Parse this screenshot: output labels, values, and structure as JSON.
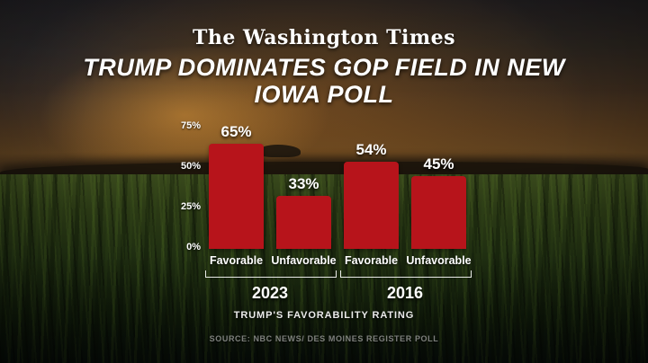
{
  "masthead": {
    "text": "The Washington Times"
  },
  "headline": {
    "line1": "TRUMP DOMINATES GOP FIELD IN NEW",
    "line2": "IOWA POLL"
  },
  "chart_data": {
    "type": "bar",
    "title": "TRUMP'S FAVORABILITY RATING",
    "groups": [
      {
        "label": "2023",
        "categories": [
          "Favorable",
          "Unfavorable"
        ],
        "values": [
          65,
          33
        ],
        "value_labels": [
          "65%",
          "33%"
        ]
      },
      {
        "label": "2016",
        "categories": [
          "Favorable",
          "Unfavorable"
        ],
        "values": [
          54,
          45
        ],
        "value_labels": [
          "54%",
          "45%"
        ]
      }
    ],
    "ylabel": "",
    "ylim": [
      0,
      75
    ],
    "yticks": [
      {
        "value": 75,
        "label": "75%"
      },
      {
        "value": 50,
        "label": "50%"
      },
      {
        "value": 25,
        "label": "25%"
      },
      {
        "value": 0,
        "label": "0%"
      }
    ],
    "grid": false,
    "bar_color": "#b7141b"
  },
  "source": {
    "text": "SOURCE: NBC NEWS/ DES MOINES REGISTER POLL"
  },
  "colors": {
    "bar": "#b7141b",
    "text": "#ffffff"
  },
  "background": {
    "scene": "cornfield-at-sunset"
  }
}
